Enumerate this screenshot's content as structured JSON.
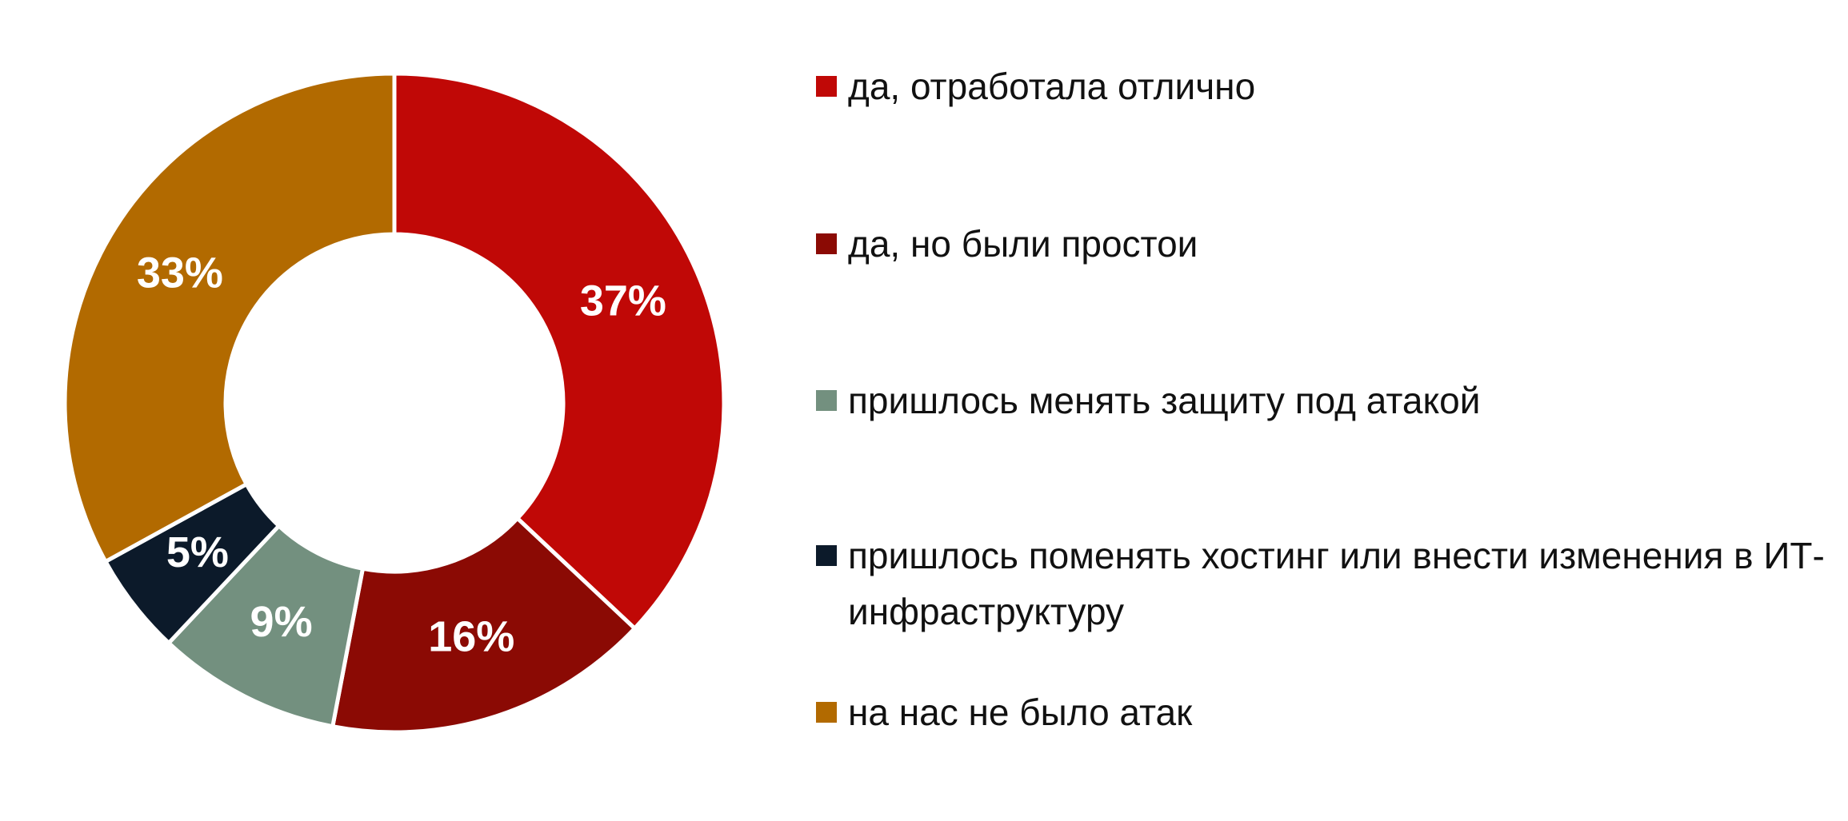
{
  "chart_data": {
    "type": "donut",
    "categories": [
      "да, отработала отлично",
      "да, но были простои",
      "пришлось менять защиту под атакой",
      "пришлось поменять хостинг или внести изменения в ИТ-инфраструктуру",
      "на нас не было атак"
    ],
    "values": [
      37,
      16,
      9,
      5,
      33
    ],
    "value_labels": [
      "37%",
      "16%",
      "9%",
      "5%",
      "33%"
    ],
    "colors": [
      "#c00806",
      "#8b0a04",
      "#73907f",
      "#0c1a2a",
      "#b26a00"
    ],
    "legend": "right"
  }
}
